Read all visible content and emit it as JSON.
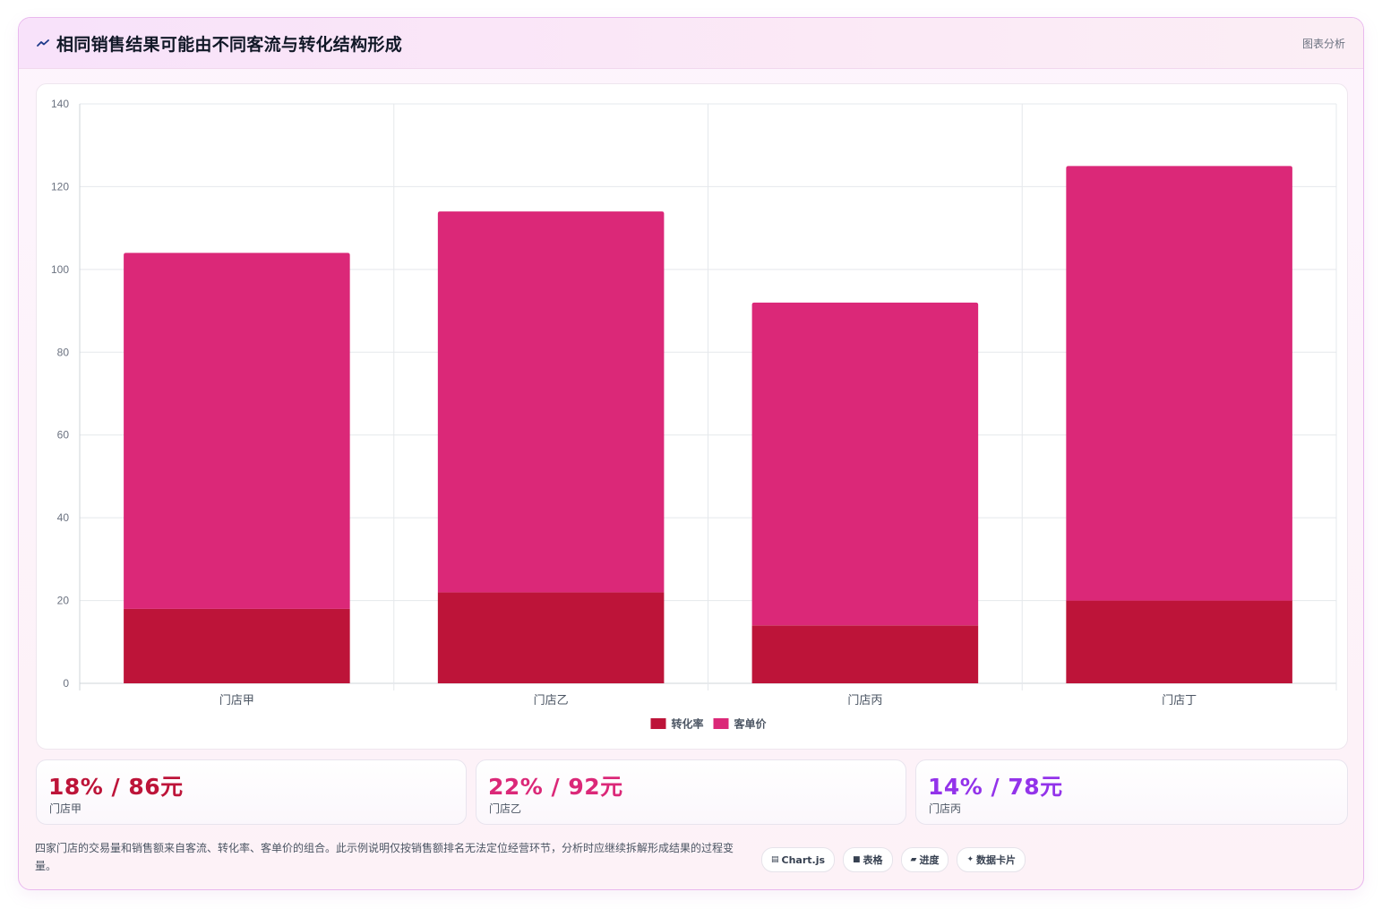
{
  "header": {
    "title": "相同销售结果可能由不同客流与转化结构形成",
    "tag": "图表分析"
  },
  "colors": {
    "conversion": "#bd1439",
    "price": "#db2878",
    "stat_1": "#bd1439",
    "stat_2": "#db2878",
    "stat_3": "#9333ea"
  },
  "chart_data": {
    "type": "bar",
    "stacked": true,
    "categories": [
      "门店甲",
      "门店乙",
      "门店丙",
      "门店丁"
    ],
    "series": [
      {
        "name": "转化率",
        "values": [
          18,
          22,
          14,
          20
        ],
        "color": "#bd1439"
      },
      {
        "name": "客单价",
        "values": [
          86,
          92,
          78,
          105
        ],
        "color": "#db2878"
      }
    ],
    "ylim": [
      0,
      140
    ],
    "yticks": [
      0,
      20,
      40,
      60,
      80,
      100,
      120,
      140
    ],
    "grid": true,
    "legend": "bottom"
  },
  "stats": [
    {
      "value": "18% / 86元",
      "label": "门店甲"
    },
    {
      "value": "22% / 92元",
      "label": "门店乙"
    },
    {
      "value": "14% / 78元",
      "label": "门店丙"
    }
  ],
  "footnote": "四家门店的交易量和销售额来自客流、转化率、客单价的组合。此示例说明仅按销售额排名无法定位经营环节，分析时应继续拆解形成结果的过程变量。",
  "chips": [
    {
      "icon": "chart-icon",
      "glyph": "▤",
      "label": "Chart.js"
    },
    {
      "icon": "table-icon",
      "glyph": "■",
      "label": "表格"
    },
    {
      "icon": "progress-icon",
      "glyph": "▰",
      "label": "进度"
    },
    {
      "icon": "sparkle-icon",
      "glyph": "✦",
      "label": "数据卡片"
    }
  ]
}
